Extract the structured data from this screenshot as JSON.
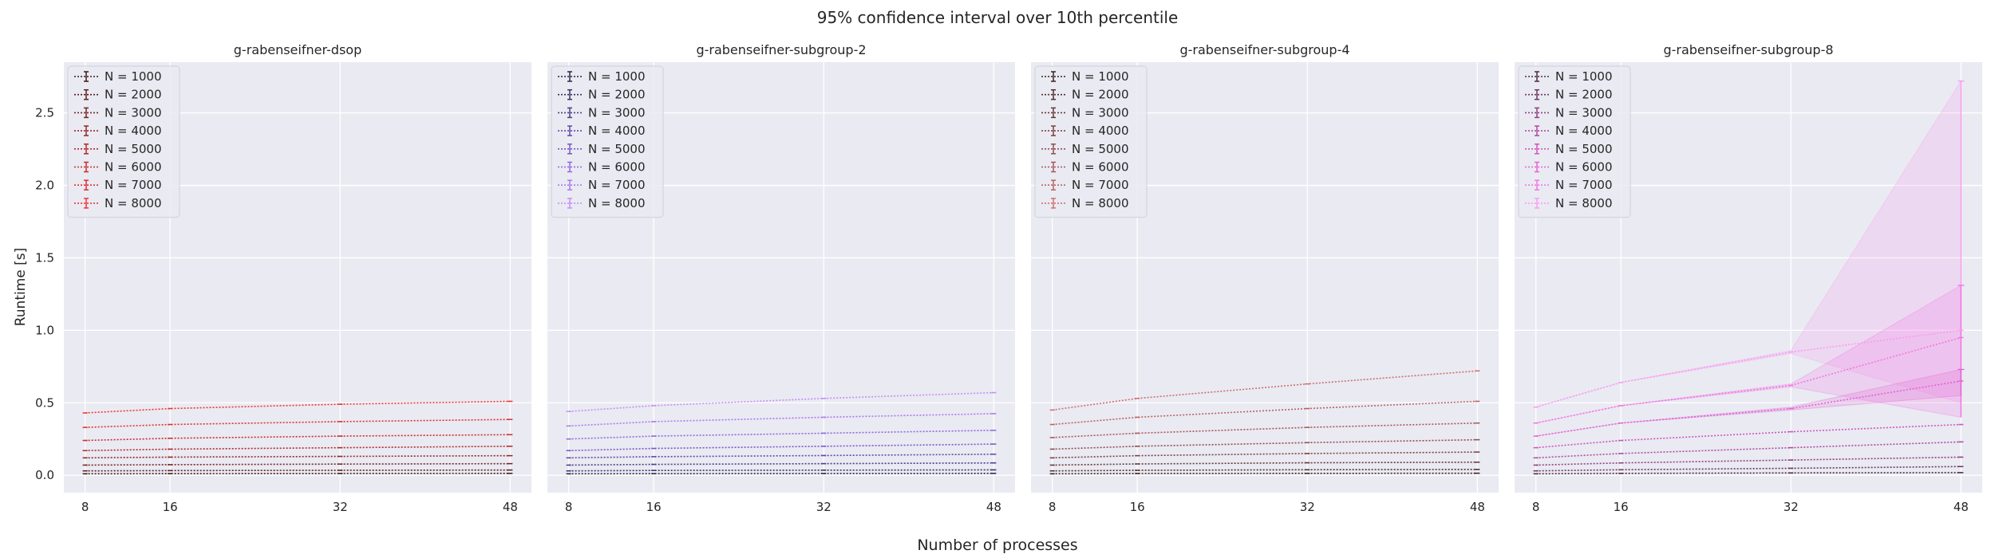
{
  "chart_data": {
    "suptitle": "95% confidence interval over 10th percentile",
    "shared_xlabel": "Number of processes",
    "ylabel": "Runtime [s]",
    "type": "line",
    "x": [
      8,
      16,
      32,
      48
    ],
    "xlim": [
      6,
      50
    ],
    "xticks": [
      8,
      16,
      32,
      48
    ],
    "ylim": [
      -0.12,
      2.85
    ],
    "yticks": [
      0.0,
      0.5,
      1.0,
      1.5,
      2.0,
      2.5
    ],
    "ytick_labels": [
      "0.0",
      "0.5",
      "1.0",
      "1.5",
      "2.0",
      "2.5"
    ],
    "grid": true,
    "legend_position": "upper-left",
    "line_style": "dotted with error bars",
    "panels": [
      {
        "title": "g-rabenseifner-dsop",
        "series": [
          {
            "name": "N = 1000",
            "color": "#3d1a1a",
            "values": [
              0.01,
              0.011,
              0.012,
              0.013
            ]
          },
          {
            "name": "N = 2000",
            "color": "#5a1f1f",
            "values": [
              0.03,
              0.032,
              0.034,
              0.036
            ]
          },
          {
            "name": "N = 3000",
            "color": "#772323",
            "values": [
              0.07,
              0.073,
              0.077,
              0.08
            ]
          },
          {
            "name": "N = 4000",
            "color": "#942626",
            "values": [
              0.12,
              0.125,
              0.13,
              0.135
            ]
          },
          {
            "name": "N = 5000",
            "color": "#b12828",
            "values": [
              0.17,
              0.18,
              0.19,
              0.2
            ]
          },
          {
            "name": "N = 6000",
            "color": "#c92c2c",
            "values": [
              0.24,
              0.255,
              0.27,
              0.28
            ]
          },
          {
            "name": "N = 7000",
            "color": "#de3030",
            "values": [
              0.33,
              0.35,
              0.37,
              0.385
            ]
          },
          {
            "name": "N = 8000",
            "color": "#f03434",
            "values": [
              0.43,
              0.46,
              0.49,
              0.51
            ]
          }
        ]
      },
      {
        "title": "g-rabenseifner-subgroup-2",
        "series": [
          {
            "name": "N = 1000",
            "color": "#2b2448",
            "values": [
              0.01,
              0.011,
              0.012,
              0.013
            ]
          },
          {
            "name": "N = 2000",
            "color": "#3c3068",
            "values": [
              0.03,
              0.033,
              0.035,
              0.037
            ]
          },
          {
            "name": "N = 3000",
            "color": "#4e3b8a",
            "values": [
              0.07,
              0.075,
              0.08,
              0.085
            ]
          },
          {
            "name": "N = 4000",
            "color": "#6147ab",
            "values": [
              0.12,
              0.128,
              0.136,
              0.145
            ]
          },
          {
            "name": "N = 5000",
            "color": "#7857c8",
            "values": [
              0.17,
              0.185,
              0.2,
              0.215
            ]
          },
          {
            "name": "N = 6000",
            "color": "#9068de",
            "values": [
              0.25,
              0.27,
              0.29,
              0.31
            ]
          },
          {
            "name": "N = 7000",
            "color": "#a97bec",
            "values": [
              0.34,
              0.37,
              0.4,
              0.425
            ]
          },
          {
            "name": "N = 8000",
            "color": "#c48ef7",
            "values": [
              0.44,
              0.48,
              0.53,
              0.57
            ]
          }
        ]
      },
      {
        "title": "g-rabenseifner-subgroup-4",
        "series": [
          {
            "name": "N = 1000",
            "color": "#3a2323",
            "values": [
              0.01,
              0.012,
              0.013,
              0.014
            ]
          },
          {
            "name": "N = 2000",
            "color": "#4f2e2e",
            "values": [
              0.03,
              0.034,
              0.038,
              0.04
            ]
          },
          {
            "name": "N = 3000",
            "color": "#643838",
            "values": [
              0.07,
              0.078,
              0.086,
              0.09
            ]
          },
          {
            "name": "N = 4000",
            "color": "#7a4242",
            "values": [
              0.12,
              0.135,
              0.15,
              0.16
            ]
          },
          {
            "name": "N = 5000",
            "color": "#904d4d",
            "values": [
              0.18,
              0.2,
              0.225,
              0.245
            ]
          },
          {
            "name": "N = 6000",
            "color": "#a65757",
            "values": [
              0.26,
              0.29,
              0.33,
              0.36
            ]
          },
          {
            "name": "N = 7000",
            "color": "#bb6262",
            "values": [
              0.35,
              0.4,
              0.46,
              0.51
            ]
          },
          {
            "name": "N = 8000",
            "color": "#d06e6e",
            "values": [
              0.45,
              0.53,
              0.63,
              0.72
            ]
          }
        ]
      },
      {
        "title": "g-rabenseifner-subgroup-8",
        "series": [
          {
            "name": "N = 1000",
            "color": "#4a2a40",
            "values": [
              0.01,
              0.013,
              0.016,
              0.018
            ]
          },
          {
            "name": "N = 2000",
            "color": "#6d3560",
            "values": [
              0.03,
              0.038,
              0.048,
              0.06
            ]
          },
          {
            "name": "N = 3000",
            "color": "#8e3f80",
            "values": [
              0.07,
              0.085,
              0.105,
              0.125
            ]
          },
          {
            "name": "N = 4000",
            "color": "#af4aa0",
            "values": [
              0.12,
              0.15,
              0.19,
              0.23
            ]
          },
          {
            "name": "N = 5000",
            "color": "#cc56bc",
            "values": [
              0.19,
              0.24,
              0.3,
              0.35
            ]
          },
          {
            "name": "N = 6000",
            "color": "#e264d3",
            "values": [
              0.27,
              0.36,
              0.46,
              0.65
            ]
          },
          {
            "name": "N = 7000",
            "color": "#f276e4",
            "values": [
              0.36,
              0.48,
              0.62,
              0.95
            ]
          },
          {
            "name": "N = 8000",
            "color": "#f99cef",
            "values": [
              0.47,
              0.64,
              0.85,
              1.0
            ]
          }
        ],
        "bands": [
          {
            "series": "N = 8000",
            "lower": [
              0.47,
              0.64,
              0.84,
              0.5
            ],
            "upper": [
              0.47,
              0.64,
              0.86,
              2.72
            ]
          },
          {
            "series": "N = 7000",
            "lower": [
              0.36,
              0.48,
              0.61,
              0.4
            ],
            "upper": [
              0.36,
              0.48,
              0.63,
              1.31
            ]
          },
          {
            "series": "N = 6000",
            "lower": [
              0.27,
              0.36,
              0.45,
              0.55
            ],
            "upper": [
              0.27,
              0.36,
              0.47,
              0.73
            ]
          }
        ]
      }
    ]
  }
}
